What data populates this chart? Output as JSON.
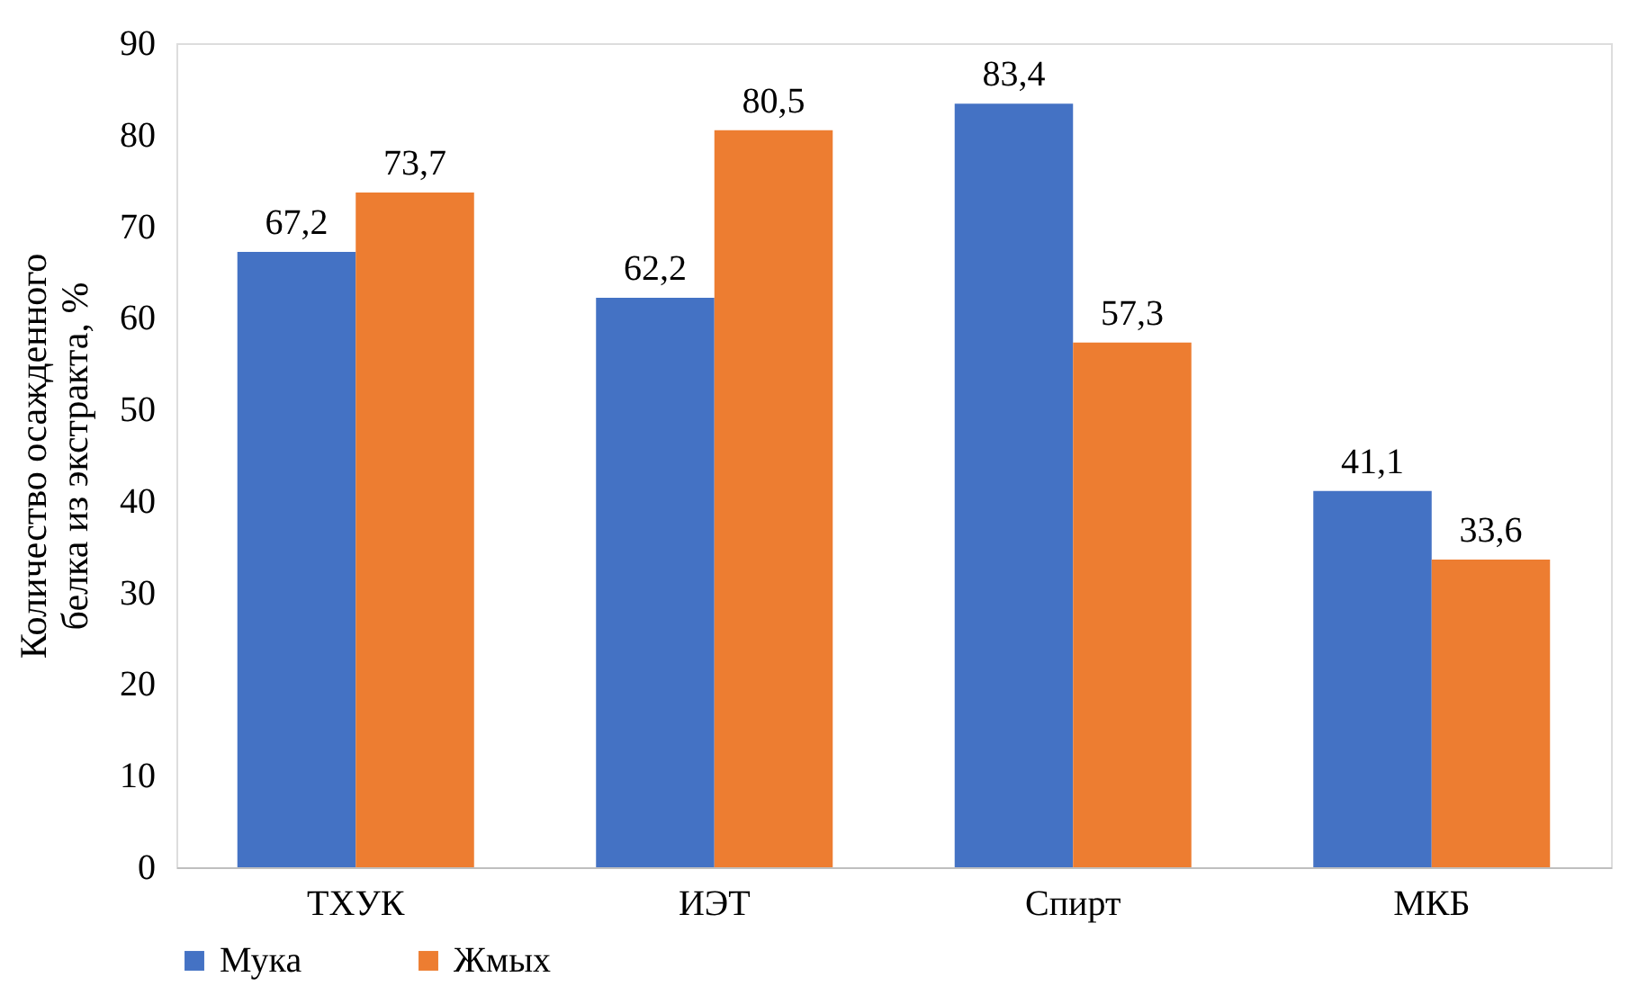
{
  "chart_data": {
    "type": "bar",
    "ylabel": "Количество осажденного\nбелка из экстракта, %",
    "categories": [
      "ТХУК",
      "ИЭТ",
      "Спирт",
      "МКБ"
    ],
    "series": [
      {
        "name": "Мука",
        "color": "#4472c4",
        "values": [
          67.2,
          62.2,
          83.4,
          41.1
        ],
        "value_labels": [
          "67,2",
          "62,2",
          "83,4",
          "41,1"
        ]
      },
      {
        "name": "Жмых",
        "color": "#ed7d31",
        "values": [
          73.7,
          80.5,
          57.3,
          33.6
        ],
        "value_labels": [
          "73,7",
          "80,5",
          "57,3",
          "33,6"
        ]
      }
    ],
    "ylim": [
      0,
      90
    ],
    "yticks": [
      0,
      10,
      20,
      30,
      40,
      50,
      60,
      70,
      80,
      90
    ],
    "grid": false,
    "legend": "bottom"
  }
}
